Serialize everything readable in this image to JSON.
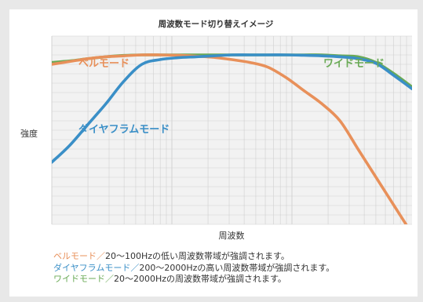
{
  "chart_data": {
    "type": "line",
    "title": "周波数モード切り替えイメージ",
    "xlabel": "周波数",
    "ylabel": "強度",
    "x": [
      0.0,
      0.05,
      0.1,
      0.15,
      0.2,
      0.25,
      0.3,
      0.35,
      0.4,
      0.45,
      0.5,
      0.55,
      0.6,
      0.65,
      0.7,
      0.75,
      0.8,
      0.85,
      0.9,
      0.95,
      1.0
    ],
    "xlim": [
      0,
      1
    ],
    "ylim": [
      0,
      1
    ],
    "grid": true,
    "legend_placement": "bottom",
    "series": [
      {
        "name": "ベルモード",
        "color": "#e8905a",
        "values": [
          0.85,
          0.865,
          0.88,
          0.89,
          0.895,
          0.9,
          0.9,
          0.898,
          0.893,
          0.887,
          0.875,
          0.86,
          0.835,
          0.78,
          0.71,
          0.64,
          0.55,
          0.4,
          0.25,
          0.1,
          -0.05
        ]
      },
      {
        "name": "ダイヤフラムモード",
        "color": "#3a8fc7",
        "values": [
          0.33,
          0.42,
          0.53,
          0.64,
          0.76,
          0.85,
          0.875,
          0.885,
          0.89,
          0.895,
          0.9,
          0.9,
          0.9,
          0.9,
          0.898,
          0.895,
          0.89,
          0.88,
          0.855,
          0.79,
          0.72
        ]
      },
      {
        "name": "ワイドモード",
        "color": "#69aa55",
        "values": [
          0.86,
          0.868,
          0.88,
          0.89,
          0.897,
          0.9,
          0.9,
          0.9,
          0.9,
          0.9,
          0.9,
          0.9,
          0.9,
          0.9,
          0.9,
          0.9,
          0.895,
          0.89,
          0.86,
          0.8,
          0.73
        ]
      }
    ],
    "annotations": [
      {
        "series": 0,
        "text": "ベルモード"
      },
      {
        "series": 1,
        "text": "ダイヤフラムモード"
      },
      {
        "series": 2,
        "text": "ワイドモード"
      }
    ]
  },
  "legend": [
    {
      "name": "ベルモード",
      "separator": "／",
      "text": "20～100Hzの低い周波数帯域が強調されます。",
      "color": "#e8905a"
    },
    {
      "name": "ダイヤフラムモード",
      "separator": "／",
      "text": "200～2000Hzの高い周波数帯域が強調されます。",
      "color": "#3a8fc7"
    },
    {
      "name": "ワイドモード",
      "separator": "／",
      "text": "20～2000Hzの周波数帯域が強調されます。",
      "color": "#69aa55"
    }
  ],
  "colors": {
    "plot_background": "#f2f2f2",
    "grid": "#cfcfcf",
    "text": "#333333"
  }
}
